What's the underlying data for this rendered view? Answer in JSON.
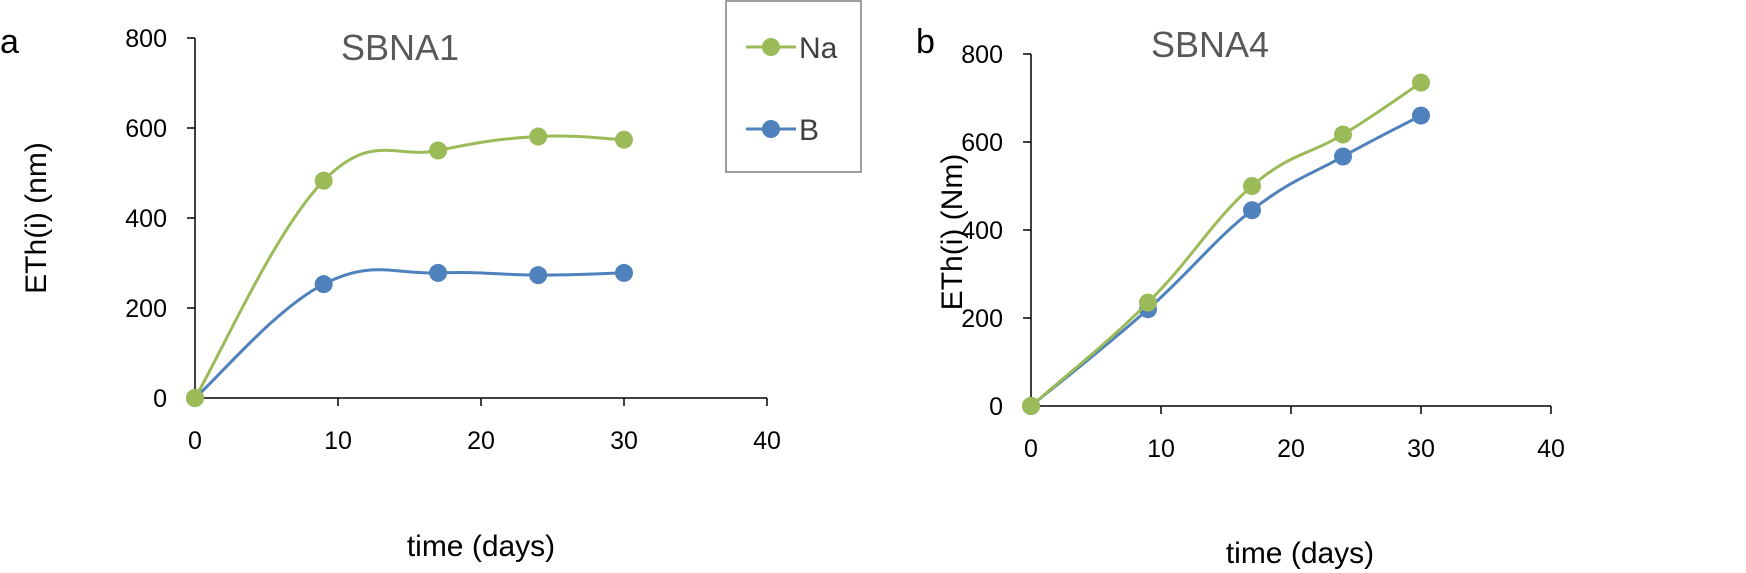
{
  "colors": {
    "Na": "#9BBB59",
    "B": "#4F81BD",
    "axis": "#000000",
    "legend_border": "#7F7F7F"
  },
  "legend": {
    "entries": [
      "Na",
      "B"
    ],
    "placement": "top-right of panel a"
  },
  "chart_data": [
    {
      "panel_label": "a",
      "type": "line",
      "smooth": true,
      "title": "SBNA1",
      "xlabel": "time (days)",
      "ylabel": "ETh(i) (nm)",
      "xlim": [
        0,
        40
      ],
      "ylim": [
        0,
        800
      ],
      "xticks": [
        0,
        10,
        20,
        30,
        40
      ],
      "yticks": [
        0,
        200,
        400,
        600,
        800
      ],
      "grid": false,
      "series": [
        {
          "name": "Na",
          "x": [
            0,
            9,
            17,
            24,
            30
          ],
          "y": [
            0,
            483,
            550,
            581,
            574
          ]
        },
        {
          "name": "B",
          "x": [
            0,
            9,
            17,
            24,
            30
          ],
          "y": [
            0,
            253,
            278,
            273,
            278
          ]
        }
      ]
    },
    {
      "panel_label": "b",
      "type": "line",
      "smooth": true,
      "title": "SBNA4",
      "xlabel": "time (days)",
      "ylabel": "ETh(i) (Nm)",
      "xlim": [
        0,
        40
      ],
      "ylim": [
        0,
        800
      ],
      "xticks": [
        0,
        10,
        20,
        30,
        40
      ],
      "yticks": [
        0,
        200,
        400,
        600,
        800
      ],
      "grid": false,
      "series": [
        {
          "name": "Na",
          "x": [
            0,
            9,
            17,
            24,
            30
          ],
          "y": [
            0,
            235,
            500,
            617,
            735
          ]
        },
        {
          "name": "B",
          "x": [
            0,
            9,
            17,
            24,
            30
          ],
          "y": [
            0,
            220,
            445,
            567,
            660
          ]
        }
      ]
    }
  ]
}
